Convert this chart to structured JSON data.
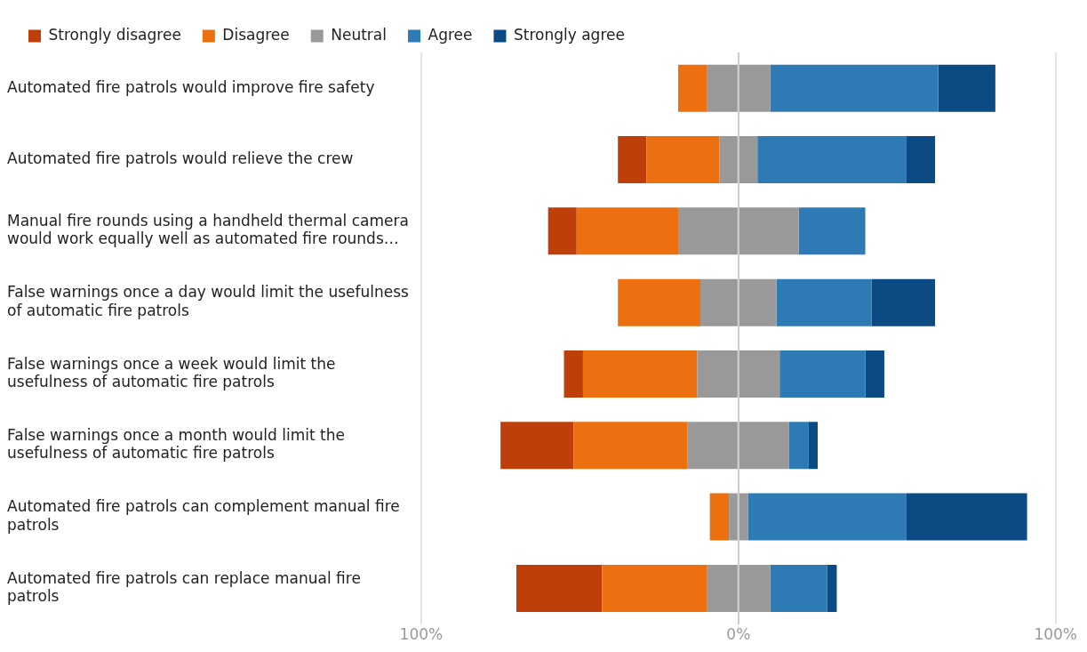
{
  "chart_data": {
    "type": "bar",
    "orientation": "horizontal",
    "stacked": true,
    "categories": [
      "Automated fire patrols would improve fire safety",
      "Automated fire patrols would relieve the crew",
      "Manual fire rounds using a handheld thermal camera would work equally well as automated fire rounds…",
      "False warnings once a day would limit the usefulness of automatic fire patrols",
      "False warnings once a week would limit the usefulness of automatic fire patrols",
      "False warnings once a month would limit the usefulness of automatic fire patrols",
      "Automated fire patrols can complement manual fire patrols",
      "Automated fire patrols can replace manual fire patrols"
    ],
    "series": [
      {
        "color": "#999999",
        "values": [
          -10,
          -6,
          -19,
          -12,
          -13,
          -16,
          -3,
          -10
        ]
      },
      {
        "name": "Disagree",
        "color": "#ec7010",
        "values": [
          -9,
          -23,
          -32,
          -26,
          -36,
          -36,
          -6,
          -33
        ]
      },
      {
        "name": "Strongly disagree",
        "color": "#bf3f0b",
        "values": [
          null,
          -9,
          -9,
          null,
          -6,
          -23,
          null,
          -27
        ]
      },
      {
        "name": "Neutral",
        "color": "#999999",
        "values": [
          10,
          6,
          19,
          12,
          13,
          16,
          3,
          10
        ]
      },
      {
        "name": "Agree",
        "color": "#2e7ab5",
        "values": [
          53,
          47,
          21,
          30,
          27,
          6,
          50,
          18
        ]
      },
      {
        "name": "Strongly agree",
        "color": "#0b4a82",
        "values": [
          18,
          9,
          null,
          20,
          6,
          3,
          38,
          3
        ]
      }
    ],
    "xlim": [
      -100,
      100
    ],
    "xticks": [
      {
        "value": -100,
        "label": "100%"
      },
      {
        "value": 0,
        "label": "0%"
      },
      {
        "value": 100,
        "label": "100%"
      }
    ],
    "grid": "x",
    "legend": "top left"
  }
}
